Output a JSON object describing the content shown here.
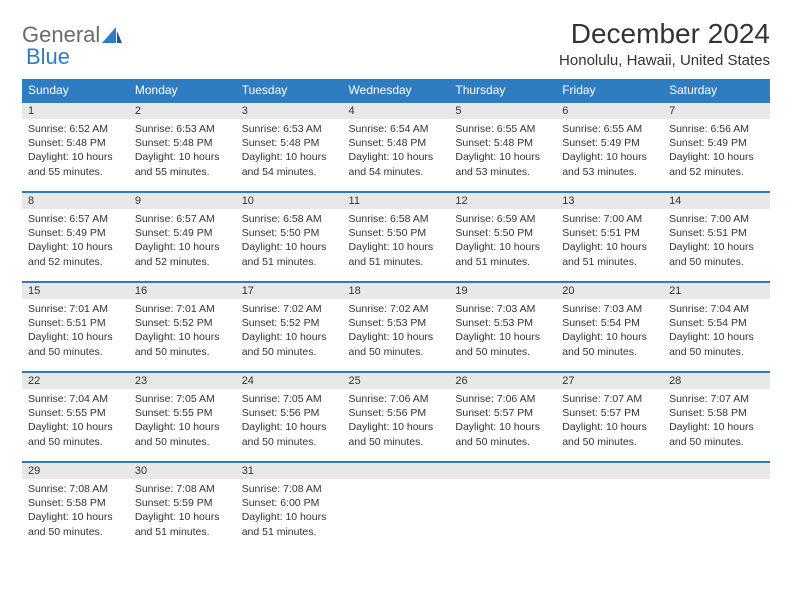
{
  "logo": {
    "text1": "General",
    "text2": "Blue"
  },
  "title": "December 2024",
  "location": "Honolulu, Hawaii, United States",
  "colors": {
    "header_bg": "#2e7cc1",
    "header_fg": "#ffffff",
    "daynum_bg": "#e8e8e8",
    "border": "#2e7cc1",
    "logo_gray": "#6b6b6b",
    "logo_blue": "#2e7cc1"
  },
  "day_headers": [
    "Sunday",
    "Monday",
    "Tuesday",
    "Wednesday",
    "Thursday",
    "Friday",
    "Saturday"
  ],
  "weeks": [
    [
      {
        "n": "1",
        "sr": "Sunrise: 6:52 AM",
        "ss": "Sunset: 5:48 PM",
        "dl": "Daylight: 10 hours and 55 minutes."
      },
      {
        "n": "2",
        "sr": "Sunrise: 6:53 AM",
        "ss": "Sunset: 5:48 PM",
        "dl": "Daylight: 10 hours and 55 minutes."
      },
      {
        "n": "3",
        "sr": "Sunrise: 6:53 AM",
        "ss": "Sunset: 5:48 PM",
        "dl": "Daylight: 10 hours and 54 minutes."
      },
      {
        "n": "4",
        "sr": "Sunrise: 6:54 AM",
        "ss": "Sunset: 5:48 PM",
        "dl": "Daylight: 10 hours and 54 minutes."
      },
      {
        "n": "5",
        "sr": "Sunrise: 6:55 AM",
        "ss": "Sunset: 5:48 PM",
        "dl": "Daylight: 10 hours and 53 minutes."
      },
      {
        "n": "6",
        "sr": "Sunrise: 6:55 AM",
        "ss": "Sunset: 5:49 PM",
        "dl": "Daylight: 10 hours and 53 minutes."
      },
      {
        "n": "7",
        "sr": "Sunrise: 6:56 AM",
        "ss": "Sunset: 5:49 PM",
        "dl": "Daylight: 10 hours and 52 minutes."
      }
    ],
    [
      {
        "n": "8",
        "sr": "Sunrise: 6:57 AM",
        "ss": "Sunset: 5:49 PM",
        "dl": "Daylight: 10 hours and 52 minutes."
      },
      {
        "n": "9",
        "sr": "Sunrise: 6:57 AM",
        "ss": "Sunset: 5:49 PM",
        "dl": "Daylight: 10 hours and 52 minutes."
      },
      {
        "n": "10",
        "sr": "Sunrise: 6:58 AM",
        "ss": "Sunset: 5:50 PM",
        "dl": "Daylight: 10 hours and 51 minutes."
      },
      {
        "n": "11",
        "sr": "Sunrise: 6:58 AM",
        "ss": "Sunset: 5:50 PM",
        "dl": "Daylight: 10 hours and 51 minutes."
      },
      {
        "n": "12",
        "sr": "Sunrise: 6:59 AM",
        "ss": "Sunset: 5:50 PM",
        "dl": "Daylight: 10 hours and 51 minutes."
      },
      {
        "n": "13",
        "sr": "Sunrise: 7:00 AM",
        "ss": "Sunset: 5:51 PM",
        "dl": "Daylight: 10 hours and 51 minutes."
      },
      {
        "n": "14",
        "sr": "Sunrise: 7:00 AM",
        "ss": "Sunset: 5:51 PM",
        "dl": "Daylight: 10 hours and 50 minutes."
      }
    ],
    [
      {
        "n": "15",
        "sr": "Sunrise: 7:01 AM",
        "ss": "Sunset: 5:51 PM",
        "dl": "Daylight: 10 hours and 50 minutes."
      },
      {
        "n": "16",
        "sr": "Sunrise: 7:01 AM",
        "ss": "Sunset: 5:52 PM",
        "dl": "Daylight: 10 hours and 50 minutes."
      },
      {
        "n": "17",
        "sr": "Sunrise: 7:02 AM",
        "ss": "Sunset: 5:52 PM",
        "dl": "Daylight: 10 hours and 50 minutes."
      },
      {
        "n": "18",
        "sr": "Sunrise: 7:02 AM",
        "ss": "Sunset: 5:53 PM",
        "dl": "Daylight: 10 hours and 50 minutes."
      },
      {
        "n": "19",
        "sr": "Sunrise: 7:03 AM",
        "ss": "Sunset: 5:53 PM",
        "dl": "Daylight: 10 hours and 50 minutes."
      },
      {
        "n": "20",
        "sr": "Sunrise: 7:03 AM",
        "ss": "Sunset: 5:54 PM",
        "dl": "Daylight: 10 hours and 50 minutes."
      },
      {
        "n": "21",
        "sr": "Sunrise: 7:04 AM",
        "ss": "Sunset: 5:54 PM",
        "dl": "Daylight: 10 hours and 50 minutes."
      }
    ],
    [
      {
        "n": "22",
        "sr": "Sunrise: 7:04 AM",
        "ss": "Sunset: 5:55 PM",
        "dl": "Daylight: 10 hours and 50 minutes."
      },
      {
        "n": "23",
        "sr": "Sunrise: 7:05 AM",
        "ss": "Sunset: 5:55 PM",
        "dl": "Daylight: 10 hours and 50 minutes."
      },
      {
        "n": "24",
        "sr": "Sunrise: 7:05 AM",
        "ss": "Sunset: 5:56 PM",
        "dl": "Daylight: 10 hours and 50 minutes."
      },
      {
        "n": "25",
        "sr": "Sunrise: 7:06 AM",
        "ss": "Sunset: 5:56 PM",
        "dl": "Daylight: 10 hours and 50 minutes."
      },
      {
        "n": "26",
        "sr": "Sunrise: 7:06 AM",
        "ss": "Sunset: 5:57 PM",
        "dl": "Daylight: 10 hours and 50 minutes."
      },
      {
        "n": "27",
        "sr": "Sunrise: 7:07 AM",
        "ss": "Sunset: 5:57 PM",
        "dl": "Daylight: 10 hours and 50 minutes."
      },
      {
        "n": "28",
        "sr": "Sunrise: 7:07 AM",
        "ss": "Sunset: 5:58 PM",
        "dl": "Daylight: 10 hours and 50 minutes."
      }
    ],
    [
      {
        "n": "29",
        "sr": "Sunrise: 7:08 AM",
        "ss": "Sunset: 5:58 PM",
        "dl": "Daylight: 10 hours and 50 minutes."
      },
      {
        "n": "30",
        "sr": "Sunrise: 7:08 AM",
        "ss": "Sunset: 5:59 PM",
        "dl": "Daylight: 10 hours and 51 minutes."
      },
      {
        "n": "31",
        "sr": "Sunrise: 7:08 AM",
        "ss": "Sunset: 6:00 PM",
        "dl": "Daylight: 10 hours and 51 minutes."
      },
      {
        "n": "",
        "sr": "",
        "ss": "",
        "dl": ""
      },
      {
        "n": "",
        "sr": "",
        "ss": "",
        "dl": ""
      },
      {
        "n": "",
        "sr": "",
        "ss": "",
        "dl": ""
      },
      {
        "n": "",
        "sr": "",
        "ss": "",
        "dl": ""
      }
    ]
  ]
}
